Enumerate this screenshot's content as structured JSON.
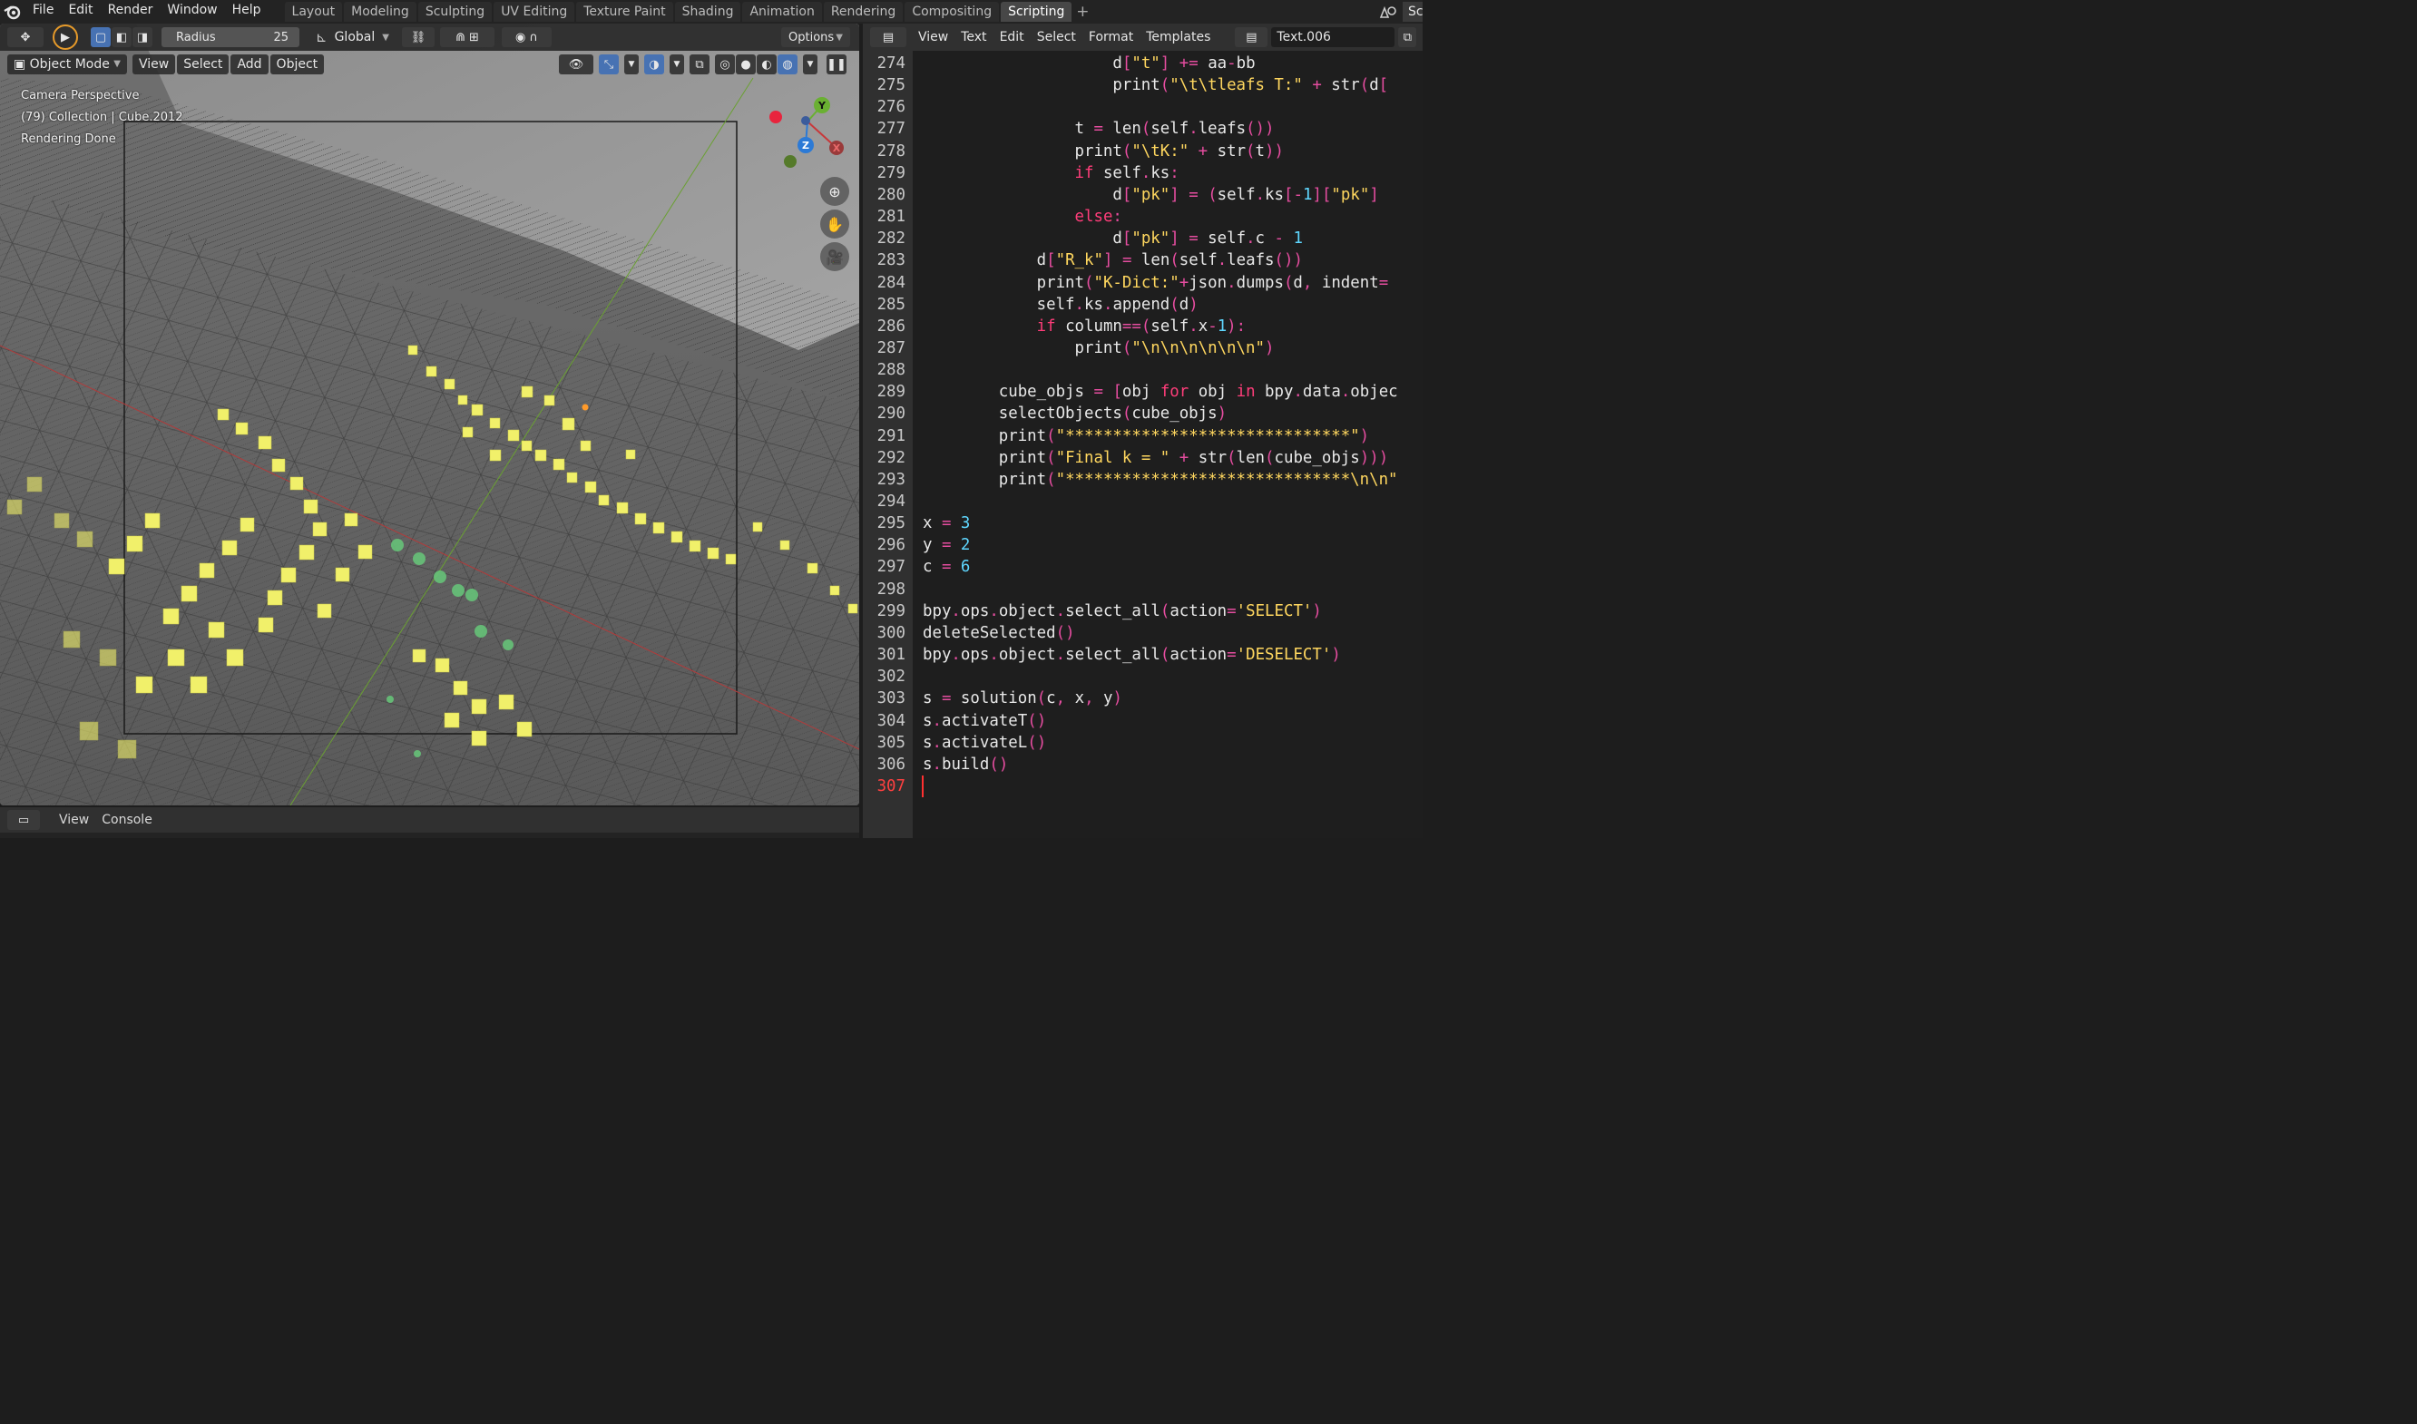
{
  "topbar": {
    "menus": [
      "File",
      "Edit",
      "Render",
      "Window",
      "Help"
    ],
    "workspaces": [
      "Layout",
      "Modeling",
      "Sculpting",
      "UV Editing",
      "Texture Paint",
      "Shading",
      "Animation",
      "Rendering",
      "Compositing",
      "Scripting"
    ],
    "active_workspace": "Scripting",
    "scene_label": "Sc"
  },
  "viewport": {
    "tool_header": {
      "radius_label": "Radius",
      "radius_value": "25",
      "orientation": "Global",
      "options_label": "Options"
    },
    "mode_header": {
      "mode": "Object Mode",
      "menus": [
        "View",
        "Select",
        "Add",
        "Object"
      ]
    },
    "overlay": {
      "line1": "Camera Perspective",
      "line2": "(79) Collection | Cube.2012",
      "line3": "Rendering Done"
    },
    "gizmo": {
      "x": "X",
      "y": "Y",
      "z": "Z"
    },
    "colors": {
      "point_yellow": "#f1f06a",
      "point_green": "#67c87a",
      "axis_x": "#c8383a",
      "axis_y": "#6ab032",
      "axis_z": "#2c7ad6"
    }
  },
  "editor": {
    "menus": [
      "View",
      "Text",
      "Edit",
      "Select",
      "Format",
      "Templates"
    ],
    "text_name": "Text.006",
    "lines": [
      {
        "n": "274",
        "code": "                    d[\"t\"] += aa-bb"
      },
      {
        "n": "275",
        "code": "                    print(\"\\t\\tleafs T:\" + str(d["
      },
      {
        "n": "276",
        "code": ""
      },
      {
        "n": "277",
        "code": "                t = len(self.leafs())"
      },
      {
        "n": "278",
        "code": "                print(\"\\tK:\" + str(t))"
      },
      {
        "n": "279",
        "code": "                if self.ks:"
      },
      {
        "n": "280",
        "code": "                    d[\"pk\"] = (self.ks[-1][\"pk\"] "
      },
      {
        "n": "281",
        "code": "                else:"
      },
      {
        "n": "282",
        "code": "                    d[\"pk\"] = self.c - 1"
      },
      {
        "n": "283",
        "code": "            d[\"R_k\"] = len(self.leafs())"
      },
      {
        "n": "284",
        "code": "            print(\"K-Dict:\"+json.dumps(d, indent="
      },
      {
        "n": "285",
        "code": "            self.ks.append(d)"
      },
      {
        "n": "286",
        "code": "            if column==(self.x-1):"
      },
      {
        "n": "287",
        "code": "                print(\"\\n\\n\\n\\n\\n\\n\")"
      },
      {
        "n": "288",
        "code": ""
      },
      {
        "n": "289",
        "code": "        cube_objs = [obj for obj in bpy.data.objec"
      },
      {
        "n": "290",
        "code": "        selectObjects(cube_objs)"
      },
      {
        "n": "291",
        "code": "        print(\"******************************\")"
      },
      {
        "n": "292",
        "code": "        print(\"Final k = \" + str(len(cube_objs)))"
      },
      {
        "n": "293",
        "code": "        print(\"******************************\\n\\n\""
      },
      {
        "n": "294",
        "code": ""
      },
      {
        "n": "295",
        "code": "x = 3"
      },
      {
        "n": "296",
        "code": "y = 2"
      },
      {
        "n": "297",
        "code": "c = 6"
      },
      {
        "n": "298",
        "code": ""
      },
      {
        "n": "299",
        "code": "bpy.ops.object.select_all(action='SELECT')"
      },
      {
        "n": "300",
        "code": "deleteSelected()"
      },
      {
        "n": "301",
        "code": "bpy.ops.object.select_all(action='DESELECT')"
      },
      {
        "n": "302",
        "code": ""
      },
      {
        "n": "303",
        "code": "s = solution(c, x, y)"
      },
      {
        "n": "304",
        "code": "s.activateT()"
      },
      {
        "n": "305",
        "code": "s.activateL()"
      },
      {
        "n": "306",
        "code": "s.build()"
      },
      {
        "n": "307",
        "code": ""
      }
    ]
  },
  "console": {
    "menus": [
      "View",
      "Console"
    ]
  }
}
